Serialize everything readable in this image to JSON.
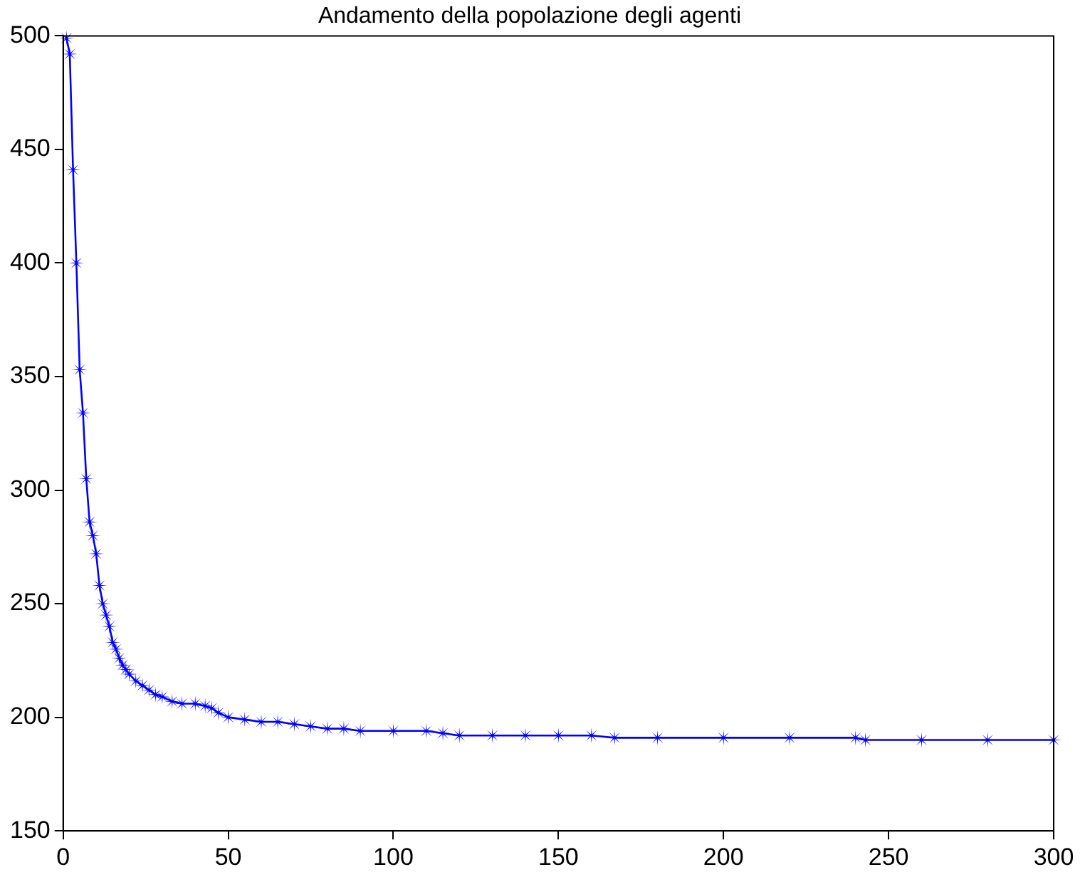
{
  "chart_data": {
    "type": "line",
    "title": "Andamento della popolazione degli agenti",
    "x": [
      1,
      2,
      3,
      4,
      5,
      6,
      7,
      8,
      9,
      10,
      11,
      12,
      13,
      14,
      15,
      16,
      17,
      18,
      19,
      20,
      22,
      24,
      26,
      28,
      30,
      33,
      36,
      40,
      43,
      45,
      47,
      50,
      55,
      60,
      65,
      70,
      75,
      80,
      85,
      90,
      100,
      110,
      115,
      120,
      130,
      140,
      150,
      160,
      167,
      180,
      200,
      220,
      240,
      243,
      260,
      280,
      300
    ],
    "series": [
      {
        "color": "#0000ff",
        "values": [
          499,
          492,
          441,
          400,
          353,
          334,
          305,
          286,
          280,
          272,
          258,
          250,
          245,
          240,
          233,
          230,
          226,
          223,
          221,
          219,
          216,
          214,
          212,
          210,
          209,
          207,
          206,
          206,
          205,
          204,
          202,
          200,
          199,
          198,
          198,
          197,
          196,
          195,
          195,
          194,
          194,
          194,
          193,
          192,
          192,
          192,
          192,
          192,
          191,
          191,
          191,
          191,
          191,
          190,
          190,
          190,
          190
        ]
      }
    ],
    "xlim": [
      0,
      300
    ],
    "xticks": [
      0,
      50,
      100,
      150,
      200,
      250,
      300
    ],
    "ylim": [
      150,
      500
    ],
    "yticks": [
      150,
      200,
      250,
      300,
      350,
      400,
      450,
      500
    ],
    "grid": false,
    "legend": false,
    "marker": "star",
    "line_style": "solid"
  }
}
